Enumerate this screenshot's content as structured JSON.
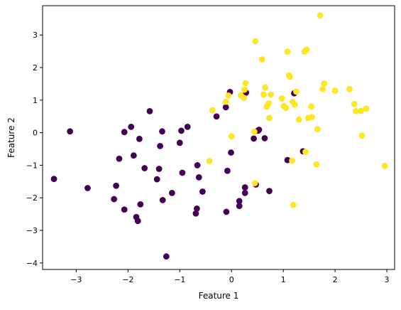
{
  "chart_data": {
    "type": "scatter",
    "title": "",
    "xlabel": "Feature 1",
    "ylabel": "Feature 2",
    "xlim": [
      -3.65,
      3.15
    ],
    "ylim": [
      -4.2,
      3.9
    ],
    "xticks": [
      -3,
      -2,
      -1,
      0,
      1,
      2,
      3
    ],
    "yticks": [
      -4,
      -3,
      -2,
      -1,
      0,
      1,
      2,
      3
    ],
    "grid": false,
    "legend": "none",
    "colors": {
      "class_0": "#440154",
      "class_1": "#fde725"
    },
    "series": [
      {
        "class": 0,
        "points": [
          [
            -3.43,
            -1.42
          ],
          [
            -3.12,
            0.04
          ],
          [
            -2.78,
            -1.7
          ],
          [
            -2.27,
            -2.04
          ],
          [
            -2.23,
            -1.63
          ],
          [
            -2.17,
            -0.8
          ],
          [
            -2.07,
            0.02
          ],
          [
            -2.07,
            -2.36
          ],
          [
            -1.94,
            0.18
          ],
          [
            -1.89,
            -0.7
          ],
          [
            -1.84,
            -2.59
          ],
          [
            -1.81,
            -2.71
          ],
          [
            -1.78,
            -0.19
          ],
          [
            -1.76,
            -2.2
          ],
          [
            -1.68,
            -1.09
          ],
          [
            -1.58,
            0.66
          ],
          [
            -1.44,
            -1.43
          ],
          [
            -1.4,
            -1.11
          ],
          [
            -1.38,
            -0.41
          ],
          [
            -1.34,
            0.04
          ],
          [
            -1.33,
            -2.07
          ],
          [
            -1.26,
            -3.8
          ],
          [
            -1.15,
            -1.85
          ],
          [
            -1.0,
            -0.31
          ],
          [
            -0.97,
            0.06
          ],
          [
            -0.95,
            -1.23
          ],
          [
            -0.85,
            0.18
          ],
          [
            -0.69,
            -2.48
          ],
          [
            -0.67,
            -2.33
          ],
          [
            -0.66,
            -1.0
          ],
          [
            -0.63,
            -1.37
          ],
          [
            -0.56,
            -1.81
          ],
          [
            -0.29,
            0.5
          ],
          [
            -0.11,
            0.78
          ],
          [
            -0.08,
            -1.17
          ],
          [
            -0.1,
            -2.43
          ],
          [
            -0.03,
            1.25
          ],
          [
            -0.01,
            -0.61
          ],
          [
            0.15,
            -2.1
          ],
          [
            0.15,
            -2.25
          ],
          [
            0.26,
            -1.68
          ],
          [
            0.26,
            -1.85
          ],
          [
            0.28,
            1.23
          ],
          [
            0.43,
            -0.18
          ],
          [
            0.47,
            -1.59
          ],
          [
            0.51,
            0.06
          ],
          [
            0.53,
            0.09
          ],
          [
            0.64,
            -0.17
          ],
          [
            0.73,
            -1.79
          ],
          [
            1.08,
            -0.84
          ],
          [
            1.21,
            1.21
          ],
          [
            1.38,
            -0.57
          ]
        ]
      },
      {
        "class": 1,
        "points": [
          [
            -0.43,
            -0.87
          ],
          [
            -0.37,
            0.69
          ],
          [
            -0.11,
            0.95
          ],
          [
            -0.06,
            1.14
          ],
          [
            0.0,
            -0.11
          ],
          [
            0.18,
            1.15
          ],
          [
            0.24,
            1.07
          ],
          [
            0.25,
            1.32
          ],
          [
            0.27,
            1.52
          ],
          [
            0.44,
            0.03
          ],
          [
            0.45,
            -1.55
          ],
          [
            0.46,
            2.81
          ],
          [
            0.59,
            2.25
          ],
          [
            0.62,
            1.17
          ],
          [
            0.65,
            1.39
          ],
          [
            0.68,
            0.8
          ],
          [
            0.72,
            0.9
          ],
          [
            0.73,
            0.45
          ],
          [
            0.76,
            1.17
          ],
          [
            0.97,
            1.05
          ],
          [
            1.01,
            0.82
          ],
          [
            1.05,
            0.76
          ],
          [
            1.08,
            2.49
          ],
          [
            1.11,
            1.76
          ],
          [
            1.13,
            1.72
          ],
          [
            1.17,
            -0.86
          ],
          [
            1.18,
            0.95
          ],
          [
            1.19,
            -2.22
          ],
          [
            1.22,
            0.86
          ],
          [
            1.25,
            1.26
          ],
          [
            1.3,
            0.4
          ],
          [
            1.41,
            2.49
          ],
          [
            1.43,
            -0.59
          ],
          [
            1.45,
            2.55
          ],
          [
            1.48,
            0.45
          ],
          [
            1.54,
            0.8
          ],
          [
            1.55,
            0.48
          ],
          [
            1.64,
            -0.97
          ],
          [
            1.66,
            0.11
          ],
          [
            1.71,
            3.6
          ],
          [
            1.76,
            1.34
          ],
          [
            1.79,
            1.51
          ],
          [
            2.0,
            1.29
          ],
          [
            2.28,
            1.34
          ],
          [
            2.37,
            0.88
          ],
          [
            2.4,
            0.66
          ],
          [
            2.5,
            0.67
          ],
          [
            2.52,
            -0.09
          ],
          [
            2.6,
            0.74
          ],
          [
            2.96,
            -1.02
          ]
        ]
      }
    ]
  }
}
